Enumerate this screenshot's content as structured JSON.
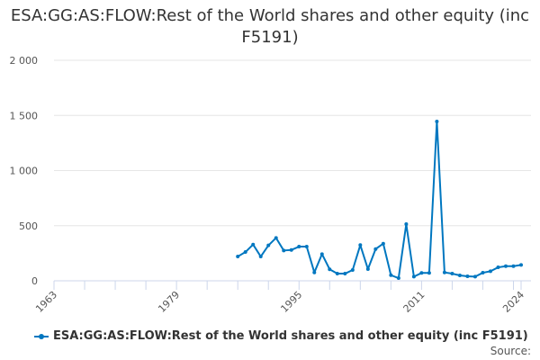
{
  "title": "ESA:GG:AS:FLOW:Rest of the World shares and other equity (inc F5191)",
  "source_label": "Source:",
  "chart_data": {
    "type": "line",
    "title": "ESA:GG:AS:FLOW:Rest of the World shares and other equity (inc F5191)",
    "xlim": [
      1963,
      2024
    ],
    "ylim": [
      0,
      2000
    ],
    "x_ticks": [
      "1963",
      "1979",
      "1995",
      "2011",
      "2024"
    ],
    "y_ticks": [
      {
        "v": 0,
        "label": "0"
      },
      {
        "v": 500,
        "label": "500"
      },
      {
        "v": 1000,
        "label": "1 000"
      },
      {
        "v": 1500,
        "label": "1 500"
      },
      {
        "v": 2000,
        "label": "2 000"
      }
    ],
    "grid": true,
    "legend": "bottom",
    "color": "#0077c0",
    "series": [
      {
        "name": "ESA:GG:AS:FLOW:Rest of the World shares and other equity (inc F5191)",
        "x": [
          1987,
          1988,
          1989,
          1990,
          1991,
          1992,
          1993,
          1994,
          1995,
          1996,
          1997,
          1998,
          1999,
          2000,
          2001,
          2002,
          2003,
          2004,
          2005,
          2006,
          2007,
          2008,
          2009,
          2010,
          2011,
          2012,
          2013,
          2014,
          2015,
          2016,
          2017,
          2018,
          2019,
          2020,
          2021,
          2022,
          2023,
          2024
        ],
        "values": [
          220,
          261,
          329,
          220,
          321,
          389,
          275,
          280,
          310,
          310,
          76,
          242,
          104,
          65,
          65,
          98,
          324,
          106,
          288,
          337,
          51,
          24,
          514,
          38,
          71,
          71,
          1445,
          76,
          65,
          49,
          41,
          38,
          73,
          87,
          122,
          133,
          133,
          144
        ]
      }
    ]
  }
}
